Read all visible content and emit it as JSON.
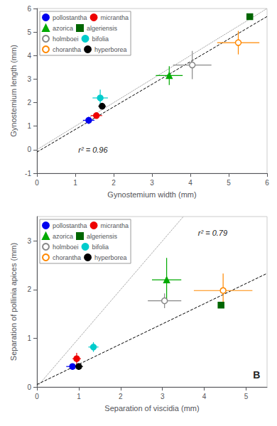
{
  "chart_data": [
    {
      "type": "scatter",
      "xlabel": "Gynostemium width (mm)",
      "ylabel": "Gynostemium length (mm)",
      "xlim": [
        0,
        6
      ],
      "ylim": [
        -1,
        6
      ],
      "xticks": [
        0,
        1,
        2,
        3,
        4,
        5,
        6
      ],
      "yticks": [
        -1,
        0,
        1,
        2,
        3,
        4,
        5,
        6
      ],
      "grid": false,
      "legend": "upper left",
      "annotations": [
        "r² = 0.96"
      ],
      "series": [
        {
          "name": "pollostantha",
          "color": "#0000ee",
          "marker": "circle",
          "x": [
            1.35
          ],
          "values": [
            1.25
          ],
          "xerr": [
            0.15
          ],
          "yerr": [
            0.15
          ]
        },
        {
          "name": "micrantha",
          "color": "#ee0000",
          "marker": "circle",
          "x": [
            1.55
          ],
          "values": [
            1.45
          ],
          "xerr": [
            0.15
          ],
          "yerr": [
            0.1
          ]
        },
        {
          "name": "azorica",
          "color": "#00aa00",
          "marker": "triangle",
          "x": [
            3.45
          ],
          "values": [
            3.15
          ],
          "xerr": [
            0.35
          ],
          "yerr": [
            0.4
          ]
        },
        {
          "name": "algeriensis",
          "color": "#006600",
          "marker": "square",
          "x": [
            5.55
          ],
          "values": [
            5.65
          ],
          "xerr": [
            0.0
          ],
          "yerr": [
            0.0
          ]
        },
        {
          "name": "holmboei",
          "color": "#888888",
          "marker": "open_circle",
          "x": [
            4.05
          ],
          "values": [
            3.6
          ],
          "xerr": [
            0.5
          ],
          "yerr": [
            0.6
          ]
        },
        {
          "name": "bifolia",
          "color": "#00cccc",
          "marker": "circle",
          "x": [
            1.65
          ],
          "values": [
            2.2
          ],
          "xerr": [
            0.2
          ],
          "yerr": [
            0.35
          ]
        },
        {
          "name": "chorantha",
          "color": "#ff8800",
          "marker": "open_circle",
          "x": [
            5.25
          ],
          "values": [
            4.55
          ],
          "xerr": [
            0.55
          ],
          "yerr": [
            0.5
          ]
        },
        {
          "name": "hyperborea",
          "color": "#000000",
          "marker": "circle",
          "x": [
            1.7
          ],
          "values": [
            1.85
          ],
          "xerr": [
            0.1
          ],
          "yerr": [
            0.1
          ]
        },
        {
          "type": "line",
          "color": "gray",
          "line_style": "dotted",
          "x": [
            0,
            6
          ],
          "values": [
            0,
            6
          ]
        },
        {
          "type": "line",
          "color": "black",
          "line_style": "dashed",
          "x": [
            0.0,
            6.0
          ],
          "values": [
            -0.1,
            5.66
          ]
        }
      ]
    },
    {
      "type": "scatter",
      "xlabel": "Separation of viscidia (mm)",
      "ylabel": "Separation of pollinia apices (mm)",
      "xlim": [
        0,
        5.5
      ],
      "ylim": [
        0,
        3.5
      ],
      "xticks": [
        0,
        1,
        2,
        3,
        4,
        5
      ],
      "yticks": [
        0,
        1,
        2,
        3
      ],
      "grid": false,
      "legend": "upper left",
      "annotations": [
        "r² = 0.79",
        "B"
      ],
      "series": [
        {
          "name": "pollostantha",
          "color": "#0000ee",
          "marker": "circle",
          "x": [
            0.85
          ],
          "values": [
            0.42
          ],
          "xerr": [
            0.15
          ],
          "yerr": [
            0.05
          ]
        },
        {
          "name": "micrantha",
          "color": "#ee0000",
          "marker": "circle",
          "x": [
            0.95
          ],
          "values": [
            0.58
          ],
          "xerr": [
            0.1
          ],
          "yerr": [
            0.12
          ]
        },
        {
          "name": "azorica",
          "color": "#00aa00",
          "marker": "triangle",
          "x": [
            3.1
          ],
          "values": [
            2.2
          ],
          "xerr": [
            0.35
          ],
          "yerr": [
            0.45
          ]
        },
        {
          "name": "algeriensis",
          "color": "#006600",
          "marker": "square",
          "x": [
            4.4
          ],
          "values": [
            1.68
          ],
          "xerr": [
            0.0
          ],
          "yerr": [
            0.0
          ]
        },
        {
          "name": "holmboei",
          "color": "#888888",
          "marker": "open_circle",
          "x": [
            3.05
          ],
          "values": [
            1.77
          ],
          "xerr": [
            0.4
          ],
          "yerr": [
            0.15
          ]
        },
        {
          "name": "bifolia",
          "color": "#00cccc",
          "marker": "circle",
          "x": [
            1.35
          ],
          "values": [
            0.82
          ],
          "xerr": [
            0.12
          ],
          "yerr": [
            0.1
          ]
        },
        {
          "name": "chorantha",
          "color": "#ff8800",
          "marker": "open_circle",
          "x": [
            4.45
          ],
          "values": [
            1.98
          ],
          "xerr": [
            0.7
          ],
          "yerr": [
            0.35
          ]
        },
        {
          "name": "hyperborea",
          "color": "#000000",
          "marker": "circle",
          "x": [
            1.0
          ],
          "values": [
            0.42
          ],
          "xerr": [
            0.1
          ],
          "yerr": [
            0.07
          ]
        },
        {
          "type": "line",
          "color": "gray",
          "line_style": "dotted",
          "x": [
            0,
            3.5
          ],
          "values": [
            0,
            3.5
          ]
        },
        {
          "type": "line",
          "color": "black",
          "line_style": "dashed",
          "x": [
            0.0,
            5.5
          ],
          "values": [
            0.05,
            2.3325
          ]
        }
      ]
    }
  ]
}
